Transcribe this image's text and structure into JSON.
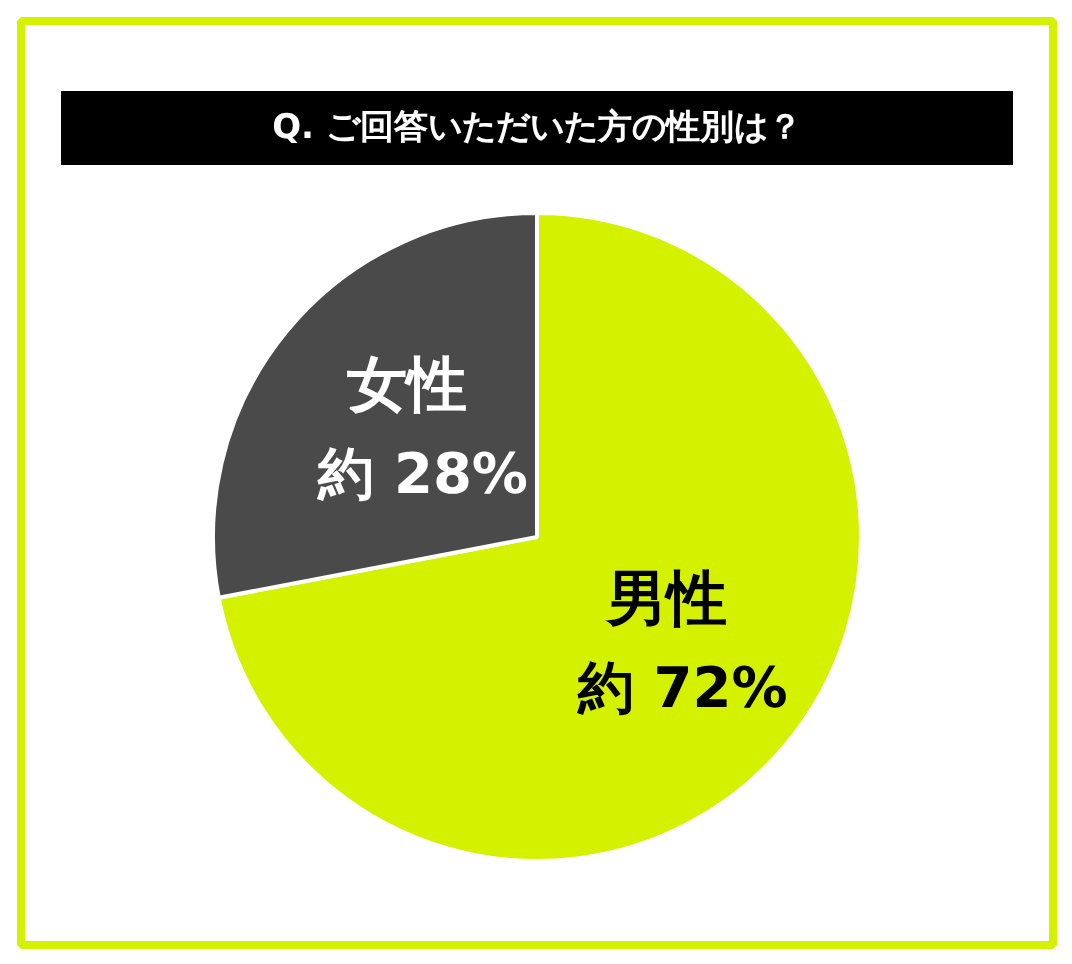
{
  "chart_data": {
    "type": "pie",
    "title": "Q. ご回答いただいた方の性別は？",
    "categories": [
      "男性",
      "女性"
    ],
    "values": [
      72,
      28
    ],
    "colors": [
      "#d4f200",
      "#4a4a4a"
    ],
    "value_labels": [
      "約 72%",
      "約 28%"
    ]
  }
}
